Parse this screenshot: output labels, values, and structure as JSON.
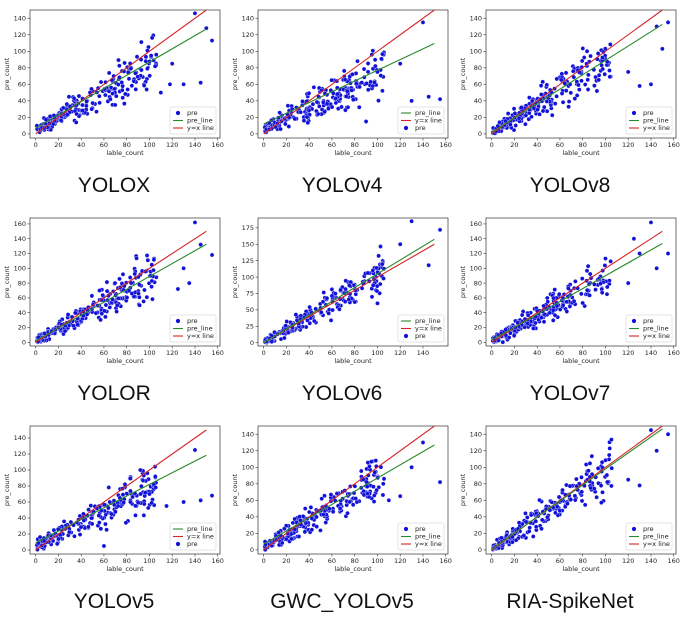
{
  "colors": {
    "points": "#1010d8",
    "points_edge": "#ffffff",
    "pre_line": "#2a8a2a",
    "identity_line": "#d42424",
    "axis": "#333333"
  },
  "chart_data": [
    {
      "type": "scatter",
      "caption": "YOLOX",
      "xlabel": "lable_count",
      "ylabel": "pre_count",
      "xlim": [
        -5,
        162
      ],
      "ylim": [
        -5,
        150
      ],
      "xticks": [
        "0",
        "20",
        "40",
        "60",
        "80",
        "100",
        "120",
        "140",
        "160"
      ],
      "yticks": [
        "0",
        "20",
        "40",
        "60",
        "80",
        "100",
        "120",
        "140"
      ],
      "fit": {
        "slope": 0.8,
        "intercept": 7
      },
      "legend": [
        "pre",
        "pre_line",
        "y=x line"
      ],
      "outliers": [
        [
          140,
          146
        ],
        [
          155,
          113
        ],
        [
          150,
          128
        ],
        [
          130,
          60
        ],
        [
          145,
          62
        ],
        [
          120,
          85
        ],
        [
          110,
          50
        ],
        [
          118,
          60
        ]
      ]
    },
    {
      "type": "scatter",
      "caption": "YOLOv4",
      "xlabel": "lable_count",
      "ylabel": "pre_count",
      "xlim": [
        -5,
        162
      ],
      "ylim": [
        -5,
        150
      ],
      "xticks": [
        "0",
        "20",
        "40",
        "60",
        "80",
        "100",
        "120",
        "140",
        "160"
      ],
      "yticks": [
        "0",
        "20",
        "40",
        "60",
        "80",
        "100",
        "120",
        "140"
      ],
      "fit": {
        "slope": 0.65,
        "intercept": 12
      },
      "legend": [
        "pre_line",
        "y=x line",
        "pre"
      ],
      "outliers": [
        [
          140,
          135
        ],
        [
          155,
          42
        ],
        [
          145,
          45
        ],
        [
          120,
          85
        ],
        [
          130,
          40
        ],
        [
          100,
          75
        ],
        [
          90,
          15
        ]
      ]
    },
    {
      "type": "scatter",
      "caption": "YOLOv8",
      "xlabel": "lable_count",
      "ylabel": "pre_count",
      "xlim": [
        -5,
        162
      ],
      "ylim": [
        -5,
        150
      ],
      "xticks": [
        "0",
        "20",
        "40",
        "60",
        "80",
        "100",
        "120",
        "140",
        "160"
      ],
      "yticks": [
        "0",
        "20",
        "40",
        "60",
        "80",
        "100",
        "120",
        "140"
      ],
      "fit": {
        "slope": 0.87,
        "intercept": 2
      },
      "legend": [
        "pre",
        "pre_line",
        "y=x line"
      ],
      "outliers": [
        [
          155,
          135
        ],
        [
          145,
          130
        ],
        [
          140,
          60
        ],
        [
          130,
          58
        ],
        [
          120,
          75
        ],
        [
          150,
          103
        ]
      ]
    },
    {
      "type": "scatter",
      "caption": "YOLOR",
      "xlabel": "lable_count",
      "ylabel": "pre_count",
      "xlim": [
        -5,
        162
      ],
      "ylim": [
        -5,
        168
      ],
      "xticks": [
        "0",
        "20",
        "40",
        "60",
        "80",
        "100",
        "120",
        "140",
        "160"
      ],
      "yticks": [
        "0",
        "20",
        "40",
        "60",
        "80",
        "100",
        "120",
        "140",
        "160"
      ],
      "fit": {
        "slope": 0.87,
        "intercept": 2
      },
      "legend": [
        "pre",
        "pre_line",
        "y=x line"
      ],
      "outliers": [
        [
          140,
          162
        ],
        [
          145,
          132
        ],
        [
          155,
          118
        ],
        [
          135,
          80
        ],
        [
          125,
          72
        ],
        [
          130,
          100
        ]
      ]
    },
    {
      "type": "scatter",
      "caption": "YOLOv6",
      "xlabel": "lable_count",
      "ylabel": "pre_count",
      "xlim": [
        -5,
        162
      ],
      "ylim": [
        -5,
        190
      ],
      "xticks": [
        "0",
        "20",
        "40",
        "60",
        "80",
        "100",
        "120",
        "140"
      ],
      "yticks": [
        "0",
        "25",
        "50",
        "75",
        "100",
        "125",
        "150",
        "175"
      ],
      "fit": {
        "slope": 1.05,
        "intercept": 0
      },
      "legend": [
        "pre_line",
        "y=x line",
        "pre"
      ],
      "outliers": [
        [
          130,
          185
        ],
        [
          155,
          172
        ],
        [
          120,
          150
        ],
        [
          145,
          118
        ],
        [
          100,
          60
        ]
      ]
    },
    {
      "type": "scatter",
      "caption": "YOLOv7",
      "xlabel": "lable_count",
      "ylabel": "pre_count",
      "xlim": [
        -5,
        162
      ],
      "ylim": [
        -5,
        168
      ],
      "xticks": [
        "0",
        "20",
        "40",
        "60",
        "80",
        "100",
        "120",
        "140",
        "160"
      ],
      "yticks": [
        "0",
        "20",
        "40",
        "60",
        "80",
        "100",
        "120",
        "140",
        "160"
      ],
      "fit": {
        "slope": 0.87,
        "intercept": 3
      },
      "legend": [
        "pre",
        "pre_line",
        "y=x line"
      ],
      "outliers": [
        [
          140,
          162
        ],
        [
          125,
          140
        ],
        [
          155,
          120
        ],
        [
          145,
          100
        ],
        [
          130,
          120
        ],
        [
          120,
          80
        ]
      ]
    },
    {
      "type": "scatter",
      "caption": "YOLOv5",
      "xlabel": "lable_count",
      "ylabel": "pre_count",
      "xlim": [
        -5,
        162
      ],
      "ylim": [
        -5,
        155
      ],
      "xticks": [
        "0",
        "20",
        "40",
        "60",
        "80",
        "100",
        "120",
        "140",
        "160"
      ],
      "yticks": [
        "0",
        "20",
        "40",
        "60",
        "80",
        "100",
        "120",
        "140"
      ],
      "fit": {
        "slope": 0.73,
        "intercept": 9
      },
      "legend": [
        "pre_line",
        "y=x line",
        "pre"
      ],
      "outliers": [
        [
          140,
          125
        ],
        [
          155,
          68
        ],
        [
          145,
          62
        ],
        [
          130,
          60
        ],
        [
          115,
          55
        ],
        [
          100,
          70
        ],
        [
          60,
          5
        ]
      ]
    },
    {
      "type": "scatter",
      "caption": "GWC_YOLOv5",
      "xlabel": "lable_count",
      "ylabel": "pre_count",
      "xlim": [
        -5,
        162
      ],
      "ylim": [
        -5,
        150
      ],
      "xticks": [
        "0",
        "20",
        "40",
        "60",
        "80",
        "100",
        "120",
        "140",
        "160"
      ],
      "yticks": [
        "0",
        "20",
        "40",
        "60",
        "80",
        "100",
        "120",
        "140"
      ],
      "fit": {
        "slope": 0.8,
        "intercept": 7
      },
      "legend": [
        "pre",
        "pre_line",
        "y=x line"
      ],
      "outliers": [
        [
          140,
          130
        ],
        [
          155,
          82
        ],
        [
          130,
          100
        ],
        [
          120,
          65
        ],
        [
          110,
          60
        ]
      ]
    },
    {
      "type": "scatter",
      "caption": "RIA-SpikeNet",
      "xlabel": "lable_count",
      "ylabel": "pre_count",
      "xlim": [
        -5,
        162
      ],
      "ylim": [
        -5,
        150
      ],
      "xticks": [
        "0",
        "20",
        "40",
        "60",
        "80",
        "100",
        "120",
        "140",
        "160"
      ],
      "yticks": [
        "0",
        "20",
        "40",
        "60",
        "80",
        "100",
        "120",
        "140"
      ],
      "fit": {
        "slope": 0.97,
        "intercept": 1
      },
      "legend": [
        "pre",
        "pre_line",
        "y=x line"
      ],
      "outliers": [
        [
          155,
          140
        ],
        [
          145,
          120
        ],
        [
          140,
          145
        ],
        [
          130,
          78
        ],
        [
          120,
          85
        ]
      ]
    }
  ]
}
